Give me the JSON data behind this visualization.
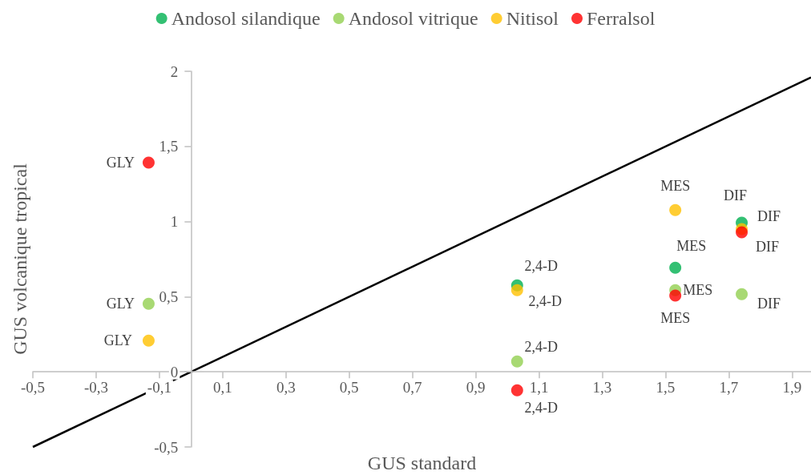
{
  "chart_data": {
    "type": "scatter",
    "xlabel": "GUS standard",
    "ylabel": "GUS volcanique tropical",
    "xlim": [
      -0.5,
      1.96
    ],
    "xticks": [
      {
        "value": -0.5,
        "label": "-0,5"
      },
      {
        "value": -0.3,
        "label": "-0,3"
      },
      {
        "value": -0.1,
        "label": "-0,1"
      },
      {
        "value": 0.1,
        "label": "0,1"
      },
      {
        "value": 0.3,
        "label": "0,3"
      },
      {
        "value": 0.5,
        "label": "0,5"
      },
      {
        "value": 0.7,
        "label": "0,7"
      },
      {
        "value": 0.9,
        "label": "0,9"
      },
      {
        "value": 1.1,
        "label": "1,1"
      },
      {
        "value": 1.3,
        "label": "1,3"
      },
      {
        "value": 1.5,
        "label": "1,5"
      },
      {
        "value": 1.7,
        "label": "1,7"
      },
      {
        "value": 1.9,
        "label": "1,9"
      }
    ],
    "ylim": [
      -0.5,
      2
    ],
    "yticks": [
      {
        "value": -0.5,
        "label": "-0,5"
      },
      0,
      {
        "value": 0.5,
        "label": "0,5"
      },
      1,
      {
        "value": 1.5,
        "label": "1,5"
      },
      2
    ],
    "grid": false,
    "legend": "top",
    "marker": "circle",
    "series": [
      {
        "name": "Andosol silandique",
        "color": "#00b050",
        "x": [
          1.031,
          1.531,
          1.741
        ],
        "values": [
          0.576,
          0.693,
          0.992
        ]
      },
      {
        "name": "Andosol vitrique",
        "color": "#92d050",
        "x": [
          -0.134,
          1.031,
          1.531,
          1.741
        ],
        "values": [
          0.453,
          0.069,
          0.544,
          0.517
        ]
      },
      {
        "name": "Nitisol",
        "color": "#ffc000",
        "x": [
          -0.134,
          1.031,
          1.531,
          1.741
        ],
        "values": [
          0.208,
          0.544,
          1.077,
          0.95
        ]
      },
      {
        "name": "Ferralsol",
        "color": "#ff0000",
        "x": [
          -0.134,
          1.031,
          1.531,
          1.741
        ],
        "values": [
          1.392,
          -0.123,
          0.507,
          0.928
        ]
      },
      {
        "type": "line",
        "color": "#000000",
        "marker": "none",
        "x": [
          -0.5,
          1.96
        ],
        "values": [
          -0.5,
          1.96
        ]
      }
    ],
    "annotations": [
      {
        "text": "GLY",
        "x": -0.134,
        "y": 1.392
      },
      {
        "text": "GLY",
        "x": -0.134,
        "y": 0.453
      },
      {
        "text": "GLY",
        "x": -0.134,
        "y": 0.208
      },
      {
        "text": "2,4-D",
        "x": 1.031,
        "y": 0.576
      },
      {
        "text": "2,4-D",
        "x": 1.031,
        "y": 0.544
      },
      {
        "text": "2,4-D",
        "x": 1.031,
        "y": 0.069
      },
      {
        "text": "2,4-D",
        "x": 1.031,
        "y": -0.123
      },
      {
        "text": "MES",
        "x": 1.531,
        "y": 1.077
      },
      {
        "text": "MES",
        "x": 1.531,
        "y": 0.693
      },
      {
        "text": "MES",
        "x": 1.531,
        "y": 0.544
      },
      {
        "text": "MES",
        "x": 1.531,
        "y": 0.507
      },
      {
        "text": "DIF",
        "x": 1.741,
        "y": 0.992
      },
      {
        "text": "DIF",
        "x": 1.741,
        "y": 0.95
      },
      {
        "text": "DIF",
        "x": 1.741,
        "y": 0.928
      },
      {
        "text": "DIF",
        "x": 1.741,
        "y": 0.517
      }
    ]
  }
}
